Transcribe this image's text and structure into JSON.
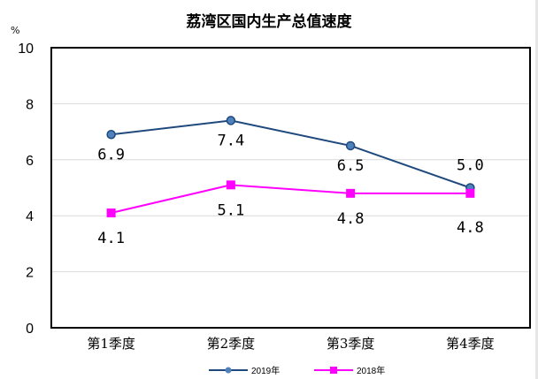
{
  "chart_data": {
    "type": "line",
    "title": "荔湾区国内生产总值速度",
    "ylabel": "%",
    "xlabel": "",
    "ylim": [
      0,
      10
    ],
    "yticks": [
      0,
      2,
      4,
      6,
      8,
      10
    ],
    "categories": [
      "第1季度",
      "第2季度",
      "第3季度",
      "第4季度"
    ],
    "grid": true,
    "legend": "bottom",
    "series": [
      {
        "name": "2019年",
        "values": [
          6.9,
          7.4,
          6.5,
          5.0
        ],
        "labels": [
          "6.9",
          "7.4",
          "6.5",
          "5.0"
        ],
        "color": "#1f497d",
        "marker_color": "#4f81bd",
        "marker": "circle"
      },
      {
        "name": "2018年",
        "values": [
          4.1,
          5.1,
          4.8,
          4.8
        ],
        "labels": [
          "4.1",
          "5.1",
          "4.8",
          "4.8"
        ],
        "color": "#ff00ff",
        "marker_color": "#ff00ff",
        "marker": "square"
      }
    ]
  }
}
